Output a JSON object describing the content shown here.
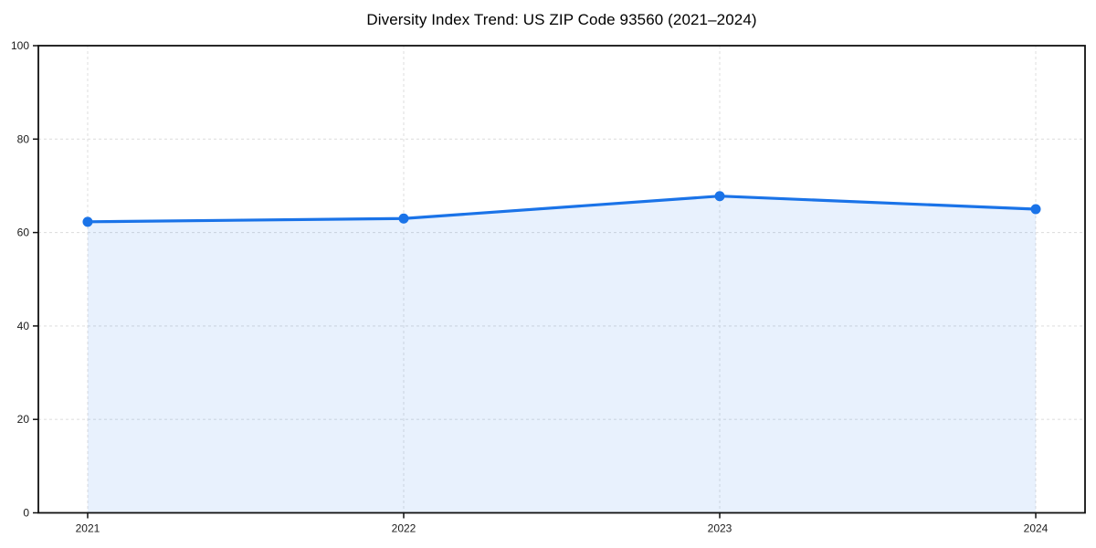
{
  "chart_data": {
    "type": "line",
    "title": "Diversity Index Trend: US ZIP Code 93560 (2021–2024)",
    "categories": [
      "2021",
      "2022",
      "2023",
      "2024"
    ],
    "series": [
      {
        "name": "Diversity Index",
        "values": [
          62.3,
          63.0,
          67.8,
          65.0
        ]
      }
    ],
    "xlabel": "",
    "ylabel": "",
    "ylim": [
      0,
      100
    ],
    "yticks": [
      0,
      20,
      40,
      60,
      80,
      100
    ],
    "grid": true,
    "legend_position": "none",
    "line_color": "#1a73e8",
    "fill_color": "#1a73e8",
    "fill_opacity": 0.1,
    "marker": "circle",
    "fill_under": true
  }
}
